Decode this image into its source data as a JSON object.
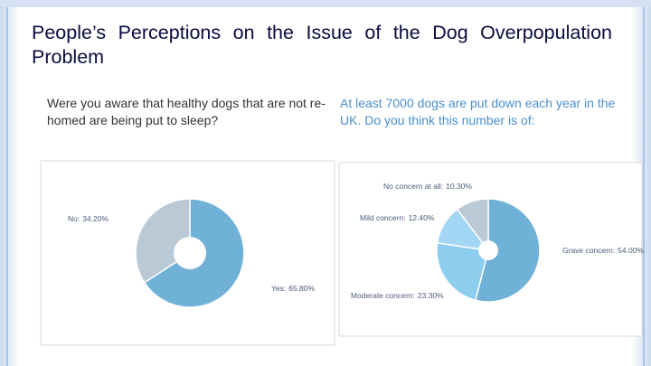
{
  "slide": {
    "title": "People’s Perceptions on the Issue of the Dog Overpopulation Problem",
    "left_caption": "Were you aware that healthy dogs that are not re-homed are being put to sleep?",
    "right_caption": "At least 7000 dogs are put down each year in the UK. Do you think this number is of:"
  },
  "chart_data": [
    {
      "type": "pie",
      "categories": [
        "No:",
        "Yes:"
      ],
      "values": [
        34.2,
        65.8
      ],
      "value_labels": [
        "34.20%",
        "65.80%"
      ],
      "colors": [
        "#b9c9d5",
        "#70b1d7"
      ],
      "donut": true
    },
    {
      "type": "pie",
      "categories": [
        "No concern at all:",
        "Mild concern:",
        "Moderate concern:",
        "Grave concern:"
      ],
      "values": [
        10.3,
        12.4,
        23.3,
        54.0
      ],
      "value_labels": [
        "10.30%",
        "12.40%",
        "23.30%",
        "54.00%"
      ],
      "colors": [
        "#b9c9d5",
        "#a3d6f2",
        "#8dcdee",
        "#70b1d7"
      ],
      "donut": true
    }
  ]
}
